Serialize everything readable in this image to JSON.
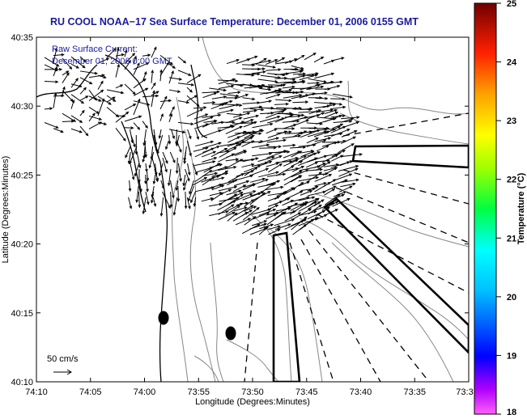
{
  "map": {
    "title": "RU COOL  NOAA−17  Sea Surface Temperature:  December 01, 2006 0155 GMT",
    "legend_line1": "Raw Surface Current:",
    "legend_line2": "December 01, 2006 0:00 GMT",
    "scale_label": "50 cm/s",
    "x_label": "Longitude (Degrees:Minutes)",
    "y_label": "Latitude (Degrees:Minutes)",
    "x_ticks": [
      "74:10",
      "74:05",
      "74:00",
      "73:55",
      "73:50",
      "73:45",
      "73:40",
      "73:35",
      "73:3"
    ],
    "y_ticks": [
      "40:35",
      "40:30",
      "40:25",
      "40:20",
      "40:15",
      "40:10"
    ]
  },
  "colorbar": {
    "label": "Temperature (°C)",
    "ticks": [
      "25",
      "24",
      "23",
      "22",
      "21",
      "20",
      "19",
      "18"
    ],
    "colors": [
      "#8b0000",
      "#ff0000",
      "#ff8c00",
      "#ffff00",
      "#00ff00",
      "#00ffff",
      "#0000ff",
      "#ff40ff"
    ]
  }
}
